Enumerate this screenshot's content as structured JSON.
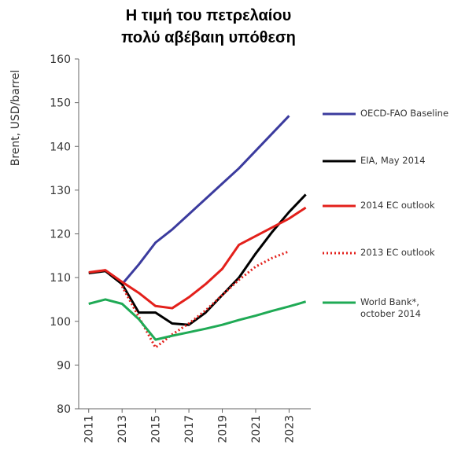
{
  "chart_data": {
    "type": "line",
    "title": "Η τιμή του πετρελαίου πολύ αβέβαιη υπόθεση",
    "y_label": "Brent, USD/barrel",
    "x": [
      2011,
      2012,
      2013,
      2014,
      2015,
      2016,
      2017,
      2018,
      2019,
      2020,
      2021,
      2022,
      2023,
      2024
    ],
    "series": [
      {
        "name": "OECD-FAO Baseline",
        "color": "#3b3b9e",
        "values": [
          null,
          null,
          108.5,
          113,
          118,
          121,
          124.5,
          128,
          131.5,
          135,
          139,
          143,
          147,
          null
        ]
      },
      {
        "name": "EIA, May 2014",
        "color": "#000000",
        "values": [
          111,
          111.5,
          108.5,
          102,
          102,
          99.5,
          99.2,
          102,
          106,
          110,
          115.5,
          120.5,
          125,
          129
        ]
      },
      {
        "name": "2014 EC outlook",
        "color": "#e3201b",
        "values": [
          111.2,
          111.7,
          109,
          106.5,
          103.5,
          103,
          105.5,
          108.5,
          112,
          117.5,
          119.5,
          121.5,
          123.5,
          126
        ]
      },
      {
        "name": "2013 EC outlook",
        "color": "#e3201b",
        "style": "dotted",
        "values": [
          null,
          null,
          108,
          101,
          94,
          97,
          99.5,
          102.5,
          106,
          109.5,
          112.5,
          114.5,
          116,
          null
        ]
      },
      {
        "name": "World Bank*, october 2014",
        "color": "#1faa55",
        "values": [
          104,
          105,
          104,
          100.5,
          95.8,
          96.7,
          97.5,
          98.3,
          99.2,
          100.3,
          101.3,
          102.4,
          103.4,
          104.5
        ]
      }
    ],
    "xlim": [
      2010.4,
      2024.3
    ],
    "xticks": [
      2011,
      2013,
      2015,
      2017,
      2019,
      2021,
      2023
    ],
    "ylim": [
      80,
      160
    ],
    "yticks": [
      80,
      90,
      100,
      110,
      120,
      130,
      140,
      150,
      160
    ]
  }
}
